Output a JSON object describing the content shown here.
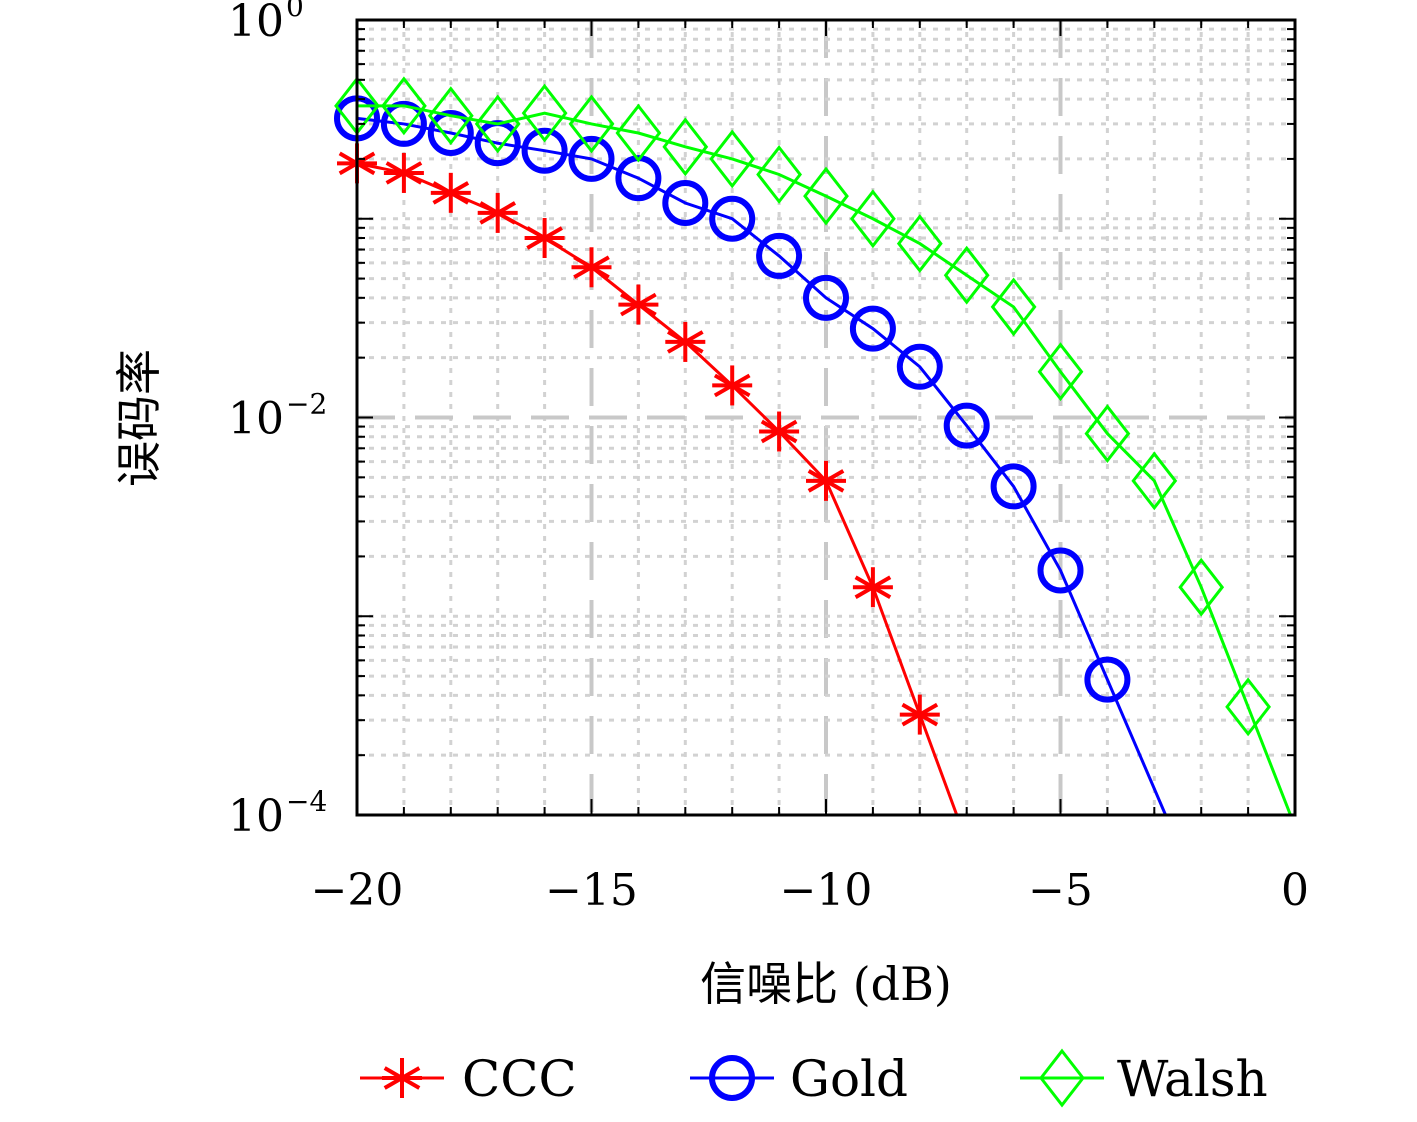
{
  "chart_data": {
    "type": "line",
    "title": "",
    "xlabel": "信噪比 (dB)",
    "ylabel": "误码率",
    "xlim": [
      -20,
      0
    ],
    "ylim": [
      0.0001,
      1
    ],
    "yscale": "log",
    "grid": true,
    "legend_position": "bottom",
    "x_ticks": [
      "−20",
      "−15",
      "−10",
      "−5",
      "0"
    ],
    "y_ticks": [
      {
        "base": "10",
        "exp": "0",
        "value": 1
      },
      {
        "base": "10",
        "exp": "−2",
        "value": 0.01
      },
      {
        "base": "10",
        "exp": "−4",
        "value": 0.0001
      }
    ],
    "series": [
      {
        "name": "CCC",
        "color": "#ff0000",
        "marker": "asterisk",
        "x": [
          -20,
          -19,
          -18,
          -17,
          -16,
          -15,
          -14,
          -13,
          -12,
          -11,
          -10,
          -9,
          -8
        ],
        "y": [
          0.19,
          0.17,
          0.135,
          0.107,
          0.08,
          0.057,
          0.037,
          0.024,
          0.0145,
          0.0085,
          0.0048,
          0.0014,
          0.00032
        ]
      },
      {
        "name": "Gold",
        "color": "#0000ff",
        "marker": "circle",
        "x": [
          -20,
          -19,
          -18,
          -17,
          -16,
          -15,
          -14,
          -13,
          -12,
          -11,
          -10,
          -9,
          -8,
          -7,
          -6,
          -5,
          -4
        ],
        "y": [
          0.32,
          0.3,
          0.27,
          0.24,
          0.22,
          0.2,
          0.16,
          0.12,
          0.1,
          0.065,
          0.04,
          0.028,
          0.018,
          0.0091,
          0.0045,
          0.0017,
          0.00048
        ]
      },
      {
        "name": "Walsh",
        "color": "#00ff00",
        "marker": "diamond",
        "x": [
          -20,
          -19,
          -18,
          -17,
          -16,
          -15,
          -14,
          -13,
          -12,
          -11,
          -10,
          -9,
          -8,
          -7,
          -6,
          -5,
          -4,
          -3,
          -2,
          -1
        ],
        "y": [
          0.37,
          0.37,
          0.33,
          0.3,
          0.34,
          0.3,
          0.27,
          0.23,
          0.2,
          0.167,
          0.13,
          0.1,
          0.075,
          0.052,
          0.036,
          0.017,
          0.0083,
          0.0048,
          0.0014,
          0.00035
        ]
      }
    ]
  }
}
